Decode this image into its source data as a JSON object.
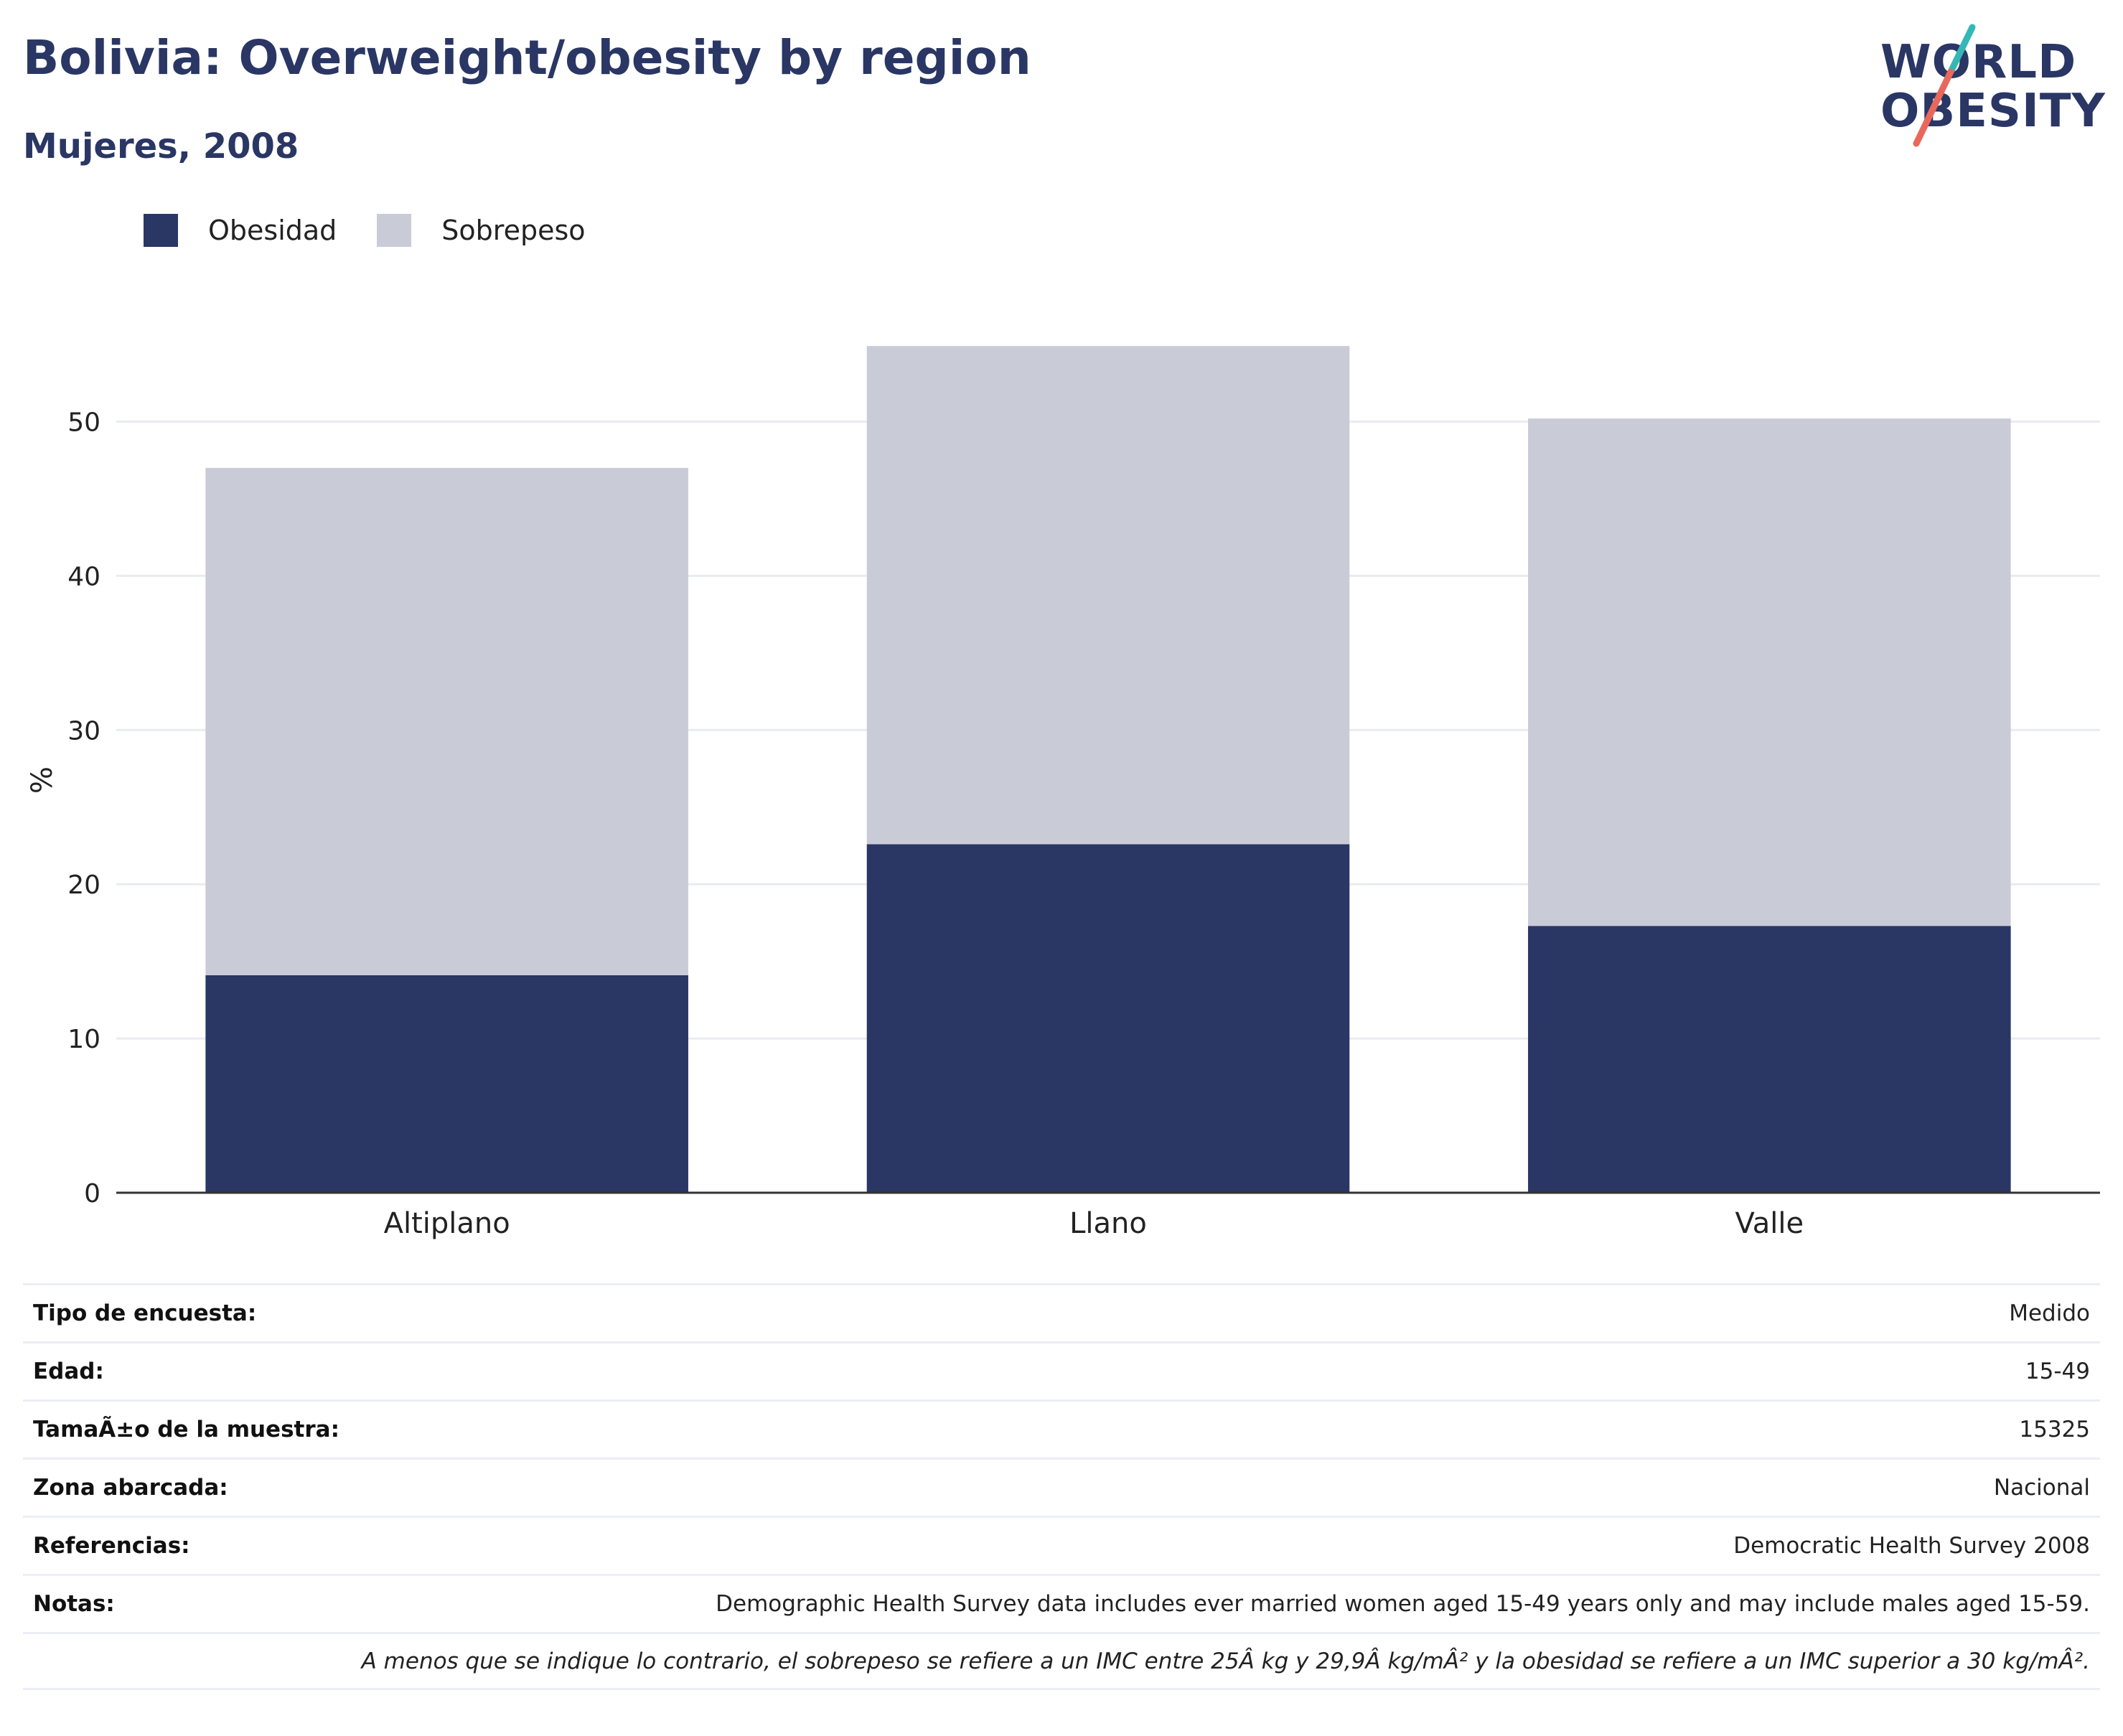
{
  "title": "Bolivia: Overweight/obesity by region",
  "subtitle": "Mujeres, 2008",
  "logo": {
    "line1": "WORLD",
    "line2": "OBESITY",
    "accent_teal": "#35b7b7",
    "accent_red": "#e8695c"
  },
  "colors": {
    "obesity": "#2a3664",
    "overweight": "#c9cbd7",
    "text": "#2a3664",
    "grid": "#e9ebf2"
  },
  "chart_data": {
    "type": "bar",
    "stacked": true,
    "categories": [
      "Altiplano",
      "Llano",
      "Valle"
    ],
    "series": [
      {
        "name": "Obesidad",
        "values": [
          14.1,
          22.6,
          17.3
        ]
      },
      {
        "name": "Sobrepeso",
        "values": [
          32.9,
          32.3,
          32.9
        ]
      }
    ],
    "ylabel": "%",
    "xlabel": "",
    "ylim": [
      0,
      55
    ],
    "yticks": [
      0,
      10,
      20,
      30,
      40,
      50
    ],
    "grid": true,
    "legend": "top-left"
  },
  "info": [
    {
      "label": "Tipo de encuesta:",
      "value": "Medido"
    },
    {
      "label": "Edad:",
      "value": "15-49"
    },
    {
      "label": "TamaÃ±o de la muestra:",
      "value": "15325"
    },
    {
      "label": "Zona abarcada:",
      "value": "Nacional"
    },
    {
      "label": "Referencias:",
      "value": "Democratic Health Survey 2008"
    },
    {
      "label": "Notas:",
      "value": "Demographic Health Survey data includes ever married women aged 15-49 years only and may include males aged 15-59."
    }
  ],
  "footnote": "A menos que se indique lo contrario, el sobrepeso se refiere a un IMC entre 25Â kg y 29,9Â kg/mÂ² y la obesidad se refiere a un IMC superior a 30 kg/mÂ²."
}
